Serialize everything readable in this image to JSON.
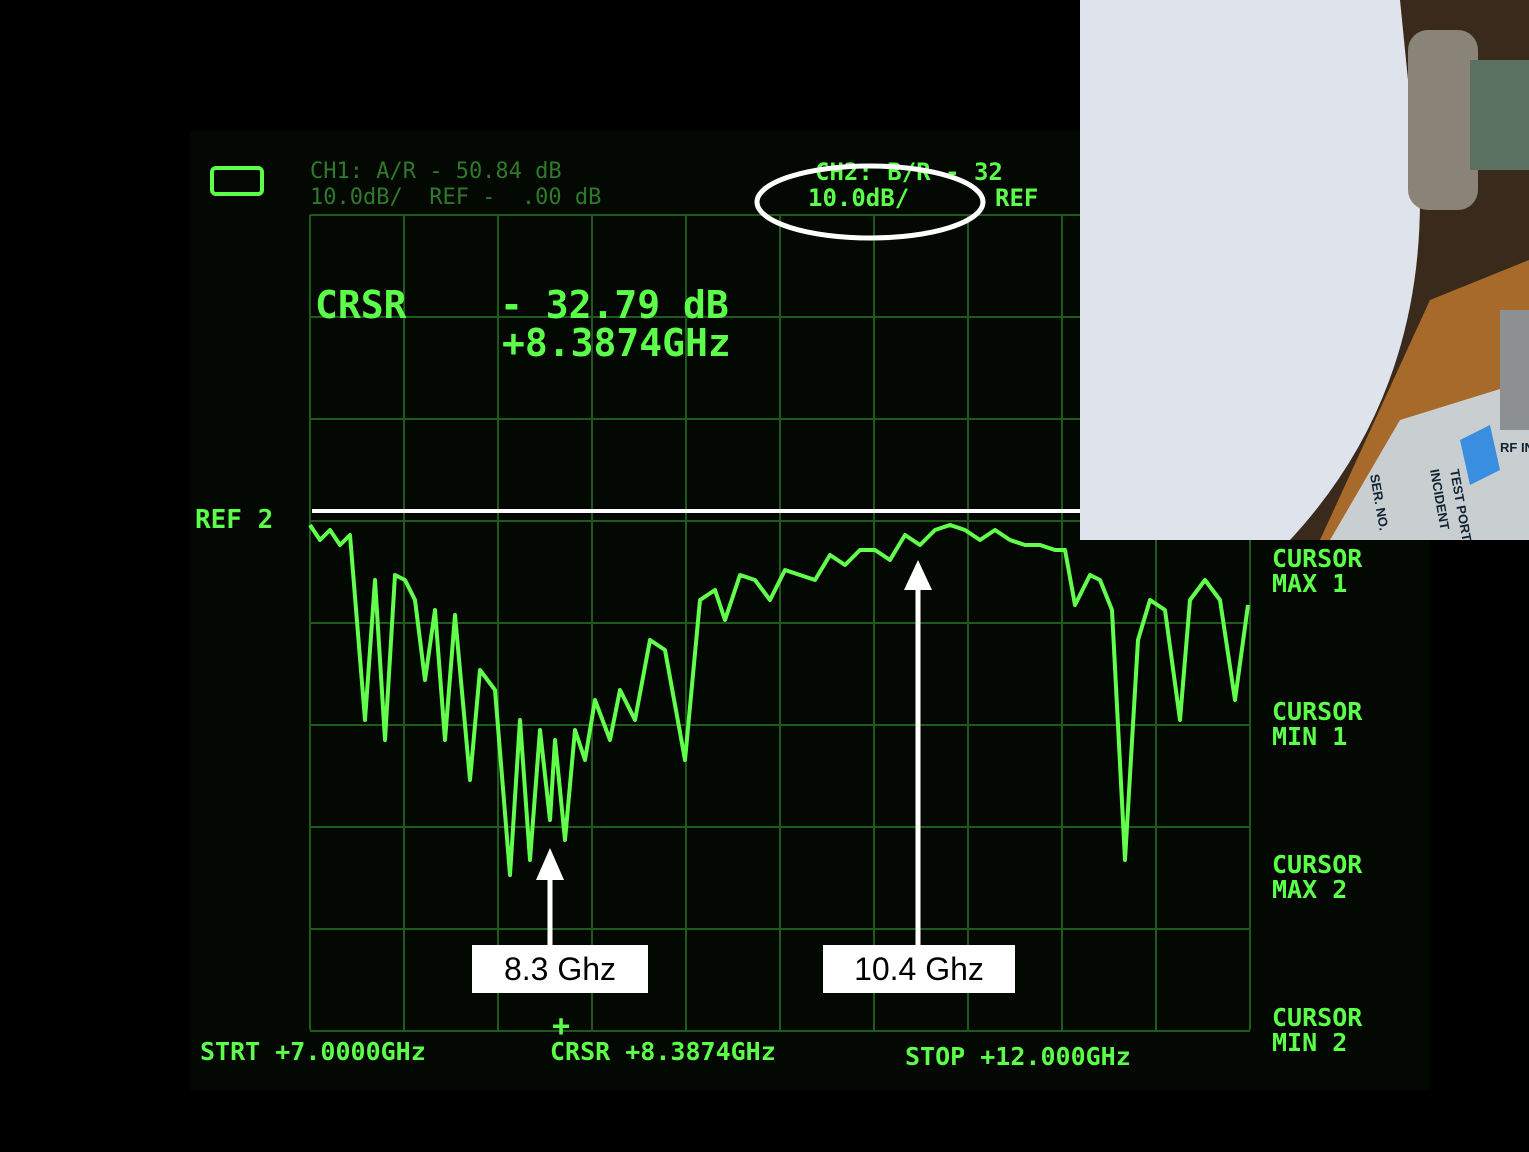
{
  "screen": {
    "header": {
      "ch1_line1": "CH1: A/R - 50.84 dB",
      "ch1_line2": "10.0dB/  REF -  .00 dB",
      "ch2_line1": "CH2: B/R - 32",
      "ch2_scale": "10.0dB/",
      "ch2_ref": "REF"
    },
    "cursor_readout": {
      "label": "CRSR",
      "value": "- 32.79 dB",
      "frequency": "+8.3874GHz"
    },
    "ref_marker": "REF 2",
    "softkeys": [
      {
        "line1": "CURSOR",
        "line2": "MAX 1"
      },
      {
        "line1": "CURSOR",
        "line2": "MIN 1"
      },
      {
        "line1": "CURSOR",
        "line2": "MAX 2"
      },
      {
        "line1": "CURSOR",
        "line2": "MIN 2"
      }
    ],
    "footer": {
      "start": "STRT +7.0000GHz",
      "cursor": "CRSR +8.3874GHz",
      "stop": "STOP +12.000GHz"
    }
  },
  "annotations": [
    {
      "label": "8.3 Ghz"
    },
    {
      "label": "10.4 Ghz"
    }
  ],
  "inset": {
    "labels": [
      "RF IN",
      "TEST PORT",
      "INCIDENT",
      "SER. NO."
    ]
  }
}
